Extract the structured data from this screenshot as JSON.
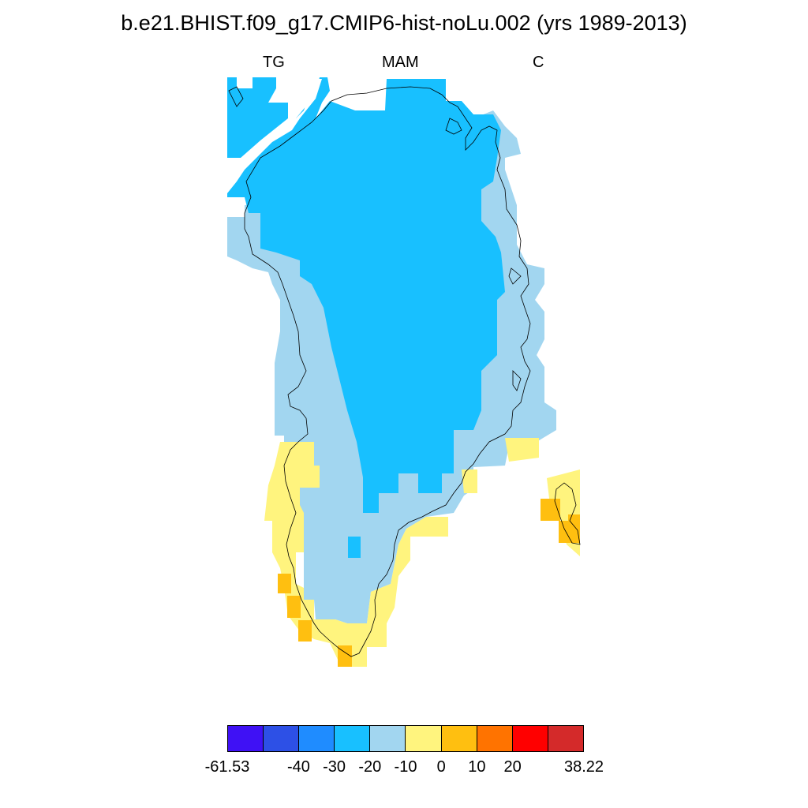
{
  "title": "b.e21.BHIST.f09_g17.CMIP6-hist-noLu.002 (yrs 1989-2013)",
  "subtitle": {
    "left": "TG",
    "center": "MAM",
    "right": "C"
  },
  "map": {
    "region": "Greenland",
    "style": "filled grid cells with coastline outline",
    "category_colors": {
      "below_-20": "#18c0ff",
      "-20_to_-10": "#a2d6f0",
      "-10_to_0": "#fff47e",
      "0_to_10": "#ffbf10"
    }
  },
  "colorbar": {
    "colors": [
      "#3f11f5",
      "#2d50e6",
      "#1f8cff",
      "#18c0ff",
      "#a2d6f0",
      "#fff47e",
      "#ffbf10",
      "#ff7300",
      "#ff0000",
      "#d42a2a"
    ],
    "labels": [
      "-61.53",
      "-40",
      "-30",
      "-20",
      "-10",
      "0",
      "10",
      "20",
      "38.22"
    ],
    "label_positions": [
      0.0,
      0.2,
      0.3,
      0.4,
      0.5,
      0.6,
      0.7,
      0.8,
      1.0
    ]
  }
}
